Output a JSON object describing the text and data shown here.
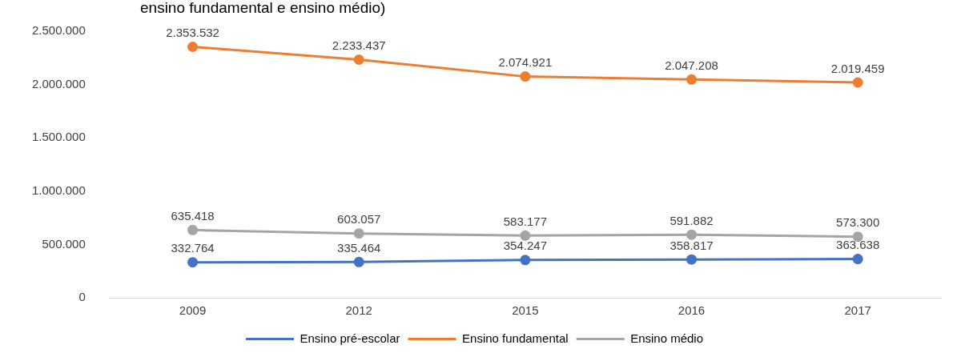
{
  "chart_data": {
    "type": "line",
    "title": "ensino fundamental e ensino médio)",
    "categories": [
      "2009",
      "2012",
      "2015",
      "2016",
      "2017"
    ],
    "series": [
      {
        "name": "Ensino pré-escolar",
        "color": "#4472c4",
        "values": [
          332764,
          335464,
          354247,
          358817,
          363638
        ],
        "value_labels": [
          "332.764",
          "335.464",
          "354.247",
          "358.817",
          "363.638"
        ]
      },
      {
        "name": "Ensino fundamental",
        "color": "#ed7d31",
        "values": [
          2353532,
          2233437,
          2074921,
          2047208,
          2019459
        ],
        "value_labels": [
          "2.353.532",
          "2.233.437",
          "2.074.921",
          "2.047.208",
          "2.019.459"
        ]
      },
      {
        "name": "Ensino médio",
        "color": "#a5a5a5",
        "values": [
          635418,
          603057,
          583177,
          591882,
          573300
        ],
        "value_labels": [
          "635.418",
          "603.057",
          "583.177",
          "591.882",
          "573.300"
        ]
      }
    ],
    "ylim": [
      0,
      2500000
    ],
    "yticks": [
      {
        "value": 0,
        "label": "0"
      },
      {
        "value": 500000,
        "label": "500.000"
      },
      {
        "value": 1000000,
        "label": "1.000.000"
      },
      {
        "value": 1500000,
        "label": "1.500.000"
      },
      {
        "value": 2000000,
        "label": "2.000.000"
      },
      {
        "value": 2500000,
        "label": "2.500.000"
      }
    ],
    "grid": false,
    "legend": "bottom",
    "marker": "circle",
    "line_style": "solid"
  }
}
